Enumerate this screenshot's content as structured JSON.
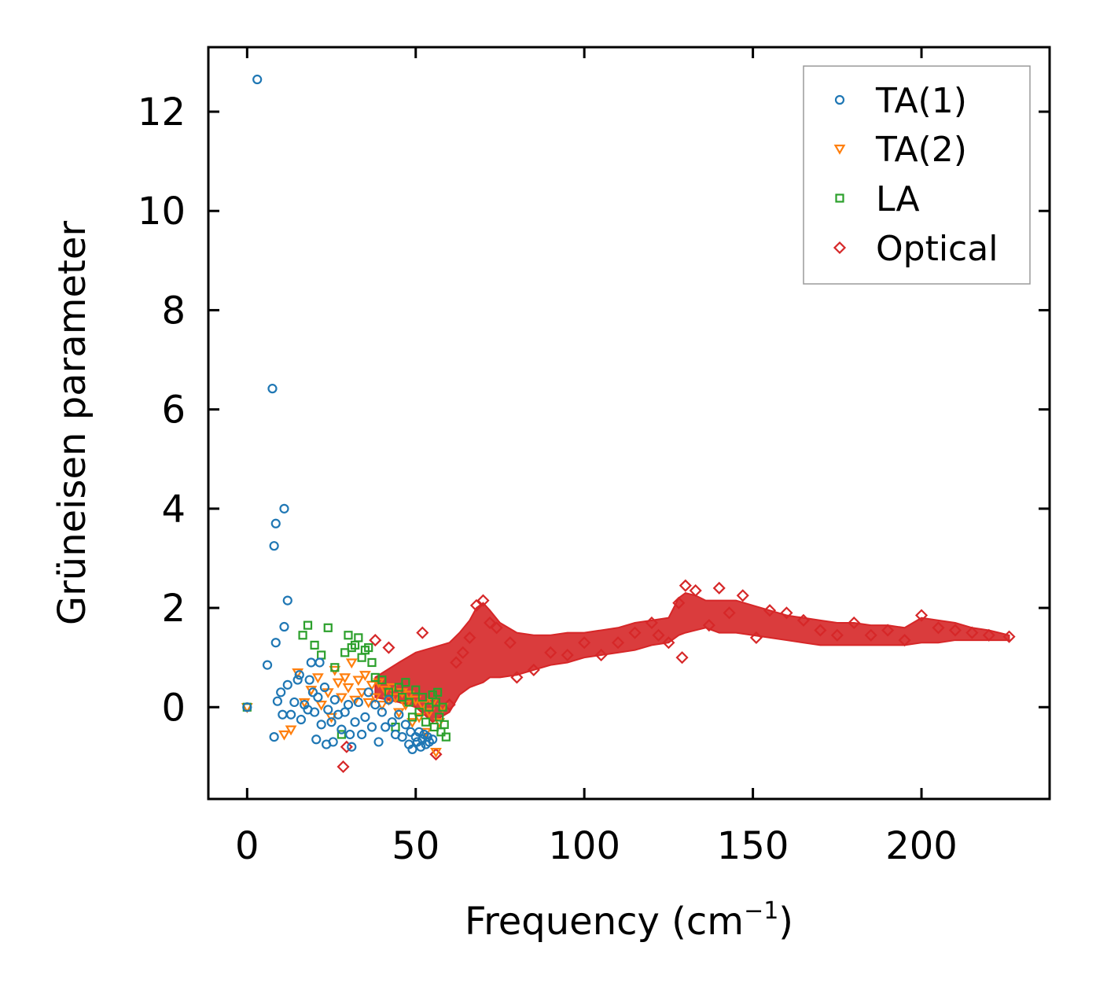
{
  "chart_data": {
    "type": "scatter",
    "title": "",
    "xlabel": "Frequency (cm",
    "xlabel_sup": "−1",
    "xlabel_close": ")",
    "ylabel": "Grüneisen parameter",
    "xlim": [
      -11.5,
      238
    ],
    "ylim": [
      -1.85,
      13.3
    ],
    "xticks": [
      0,
      50,
      100,
      150,
      200
    ],
    "yticks": [
      0,
      2,
      4,
      6,
      8,
      10,
      12
    ],
    "legend_position": "top-right",
    "series": [
      {
        "name": "TA(1)",
        "marker": "circle",
        "color": "#1f77b4",
        "points": [
          [
            0,
            0
          ],
          [
            3,
            12.65
          ],
          [
            7.5,
            6.42
          ],
          [
            8.5,
            3.7
          ],
          [
            8,
            3.25
          ],
          [
            11,
            4.0
          ],
          [
            12,
            2.15
          ],
          [
            11,
            1.62
          ],
          [
            8.5,
            1.3
          ],
          [
            6,
            0.85
          ],
          [
            8,
            -0.6
          ],
          [
            9,
            0.12
          ],
          [
            10,
            0.3
          ],
          [
            10.5,
            -0.15
          ],
          [
            12,
            0.45
          ],
          [
            13,
            -0.15
          ],
          [
            14,
            0.1
          ],
          [
            15,
            0.55
          ],
          [
            15.5,
            0.65
          ],
          [
            16,
            -0.25
          ],
          [
            17,
            0.05
          ],
          [
            18,
            -0.05
          ],
          [
            18.5,
            0.55
          ],
          [
            19,
            0.9
          ],
          [
            19.5,
            0.3
          ],
          [
            20,
            -0.1
          ],
          [
            20.5,
            -0.65
          ],
          [
            21,
            0.2
          ],
          [
            21.5,
            0.9
          ],
          [
            22,
            -0.35
          ],
          [
            23,
            0.4
          ],
          [
            23.5,
            -0.75
          ],
          [
            24,
            -0.05
          ],
          [
            25,
            -0.3
          ],
          [
            25.5,
            -0.7
          ],
          [
            26,
            0.15
          ],
          [
            27,
            -0.15
          ],
          [
            28,
            -0.45
          ],
          [
            29,
            -0.1
          ],
          [
            30,
            0.05
          ],
          [
            30.5,
            -0.55
          ],
          [
            31,
            -0.8
          ],
          [
            32,
            -0.3
          ],
          [
            33,
            0.1
          ],
          [
            34,
            -0.55
          ],
          [
            35,
            -0.2
          ],
          [
            36,
            0.3
          ],
          [
            37,
            -0.4
          ],
          [
            38,
            0.05
          ],
          [
            39,
            -0.7
          ],
          [
            40,
            -0.1
          ],
          [
            41,
            -0.4
          ],
          [
            42,
            0.15
          ],
          [
            43,
            -0.3
          ],
          [
            44,
            -0.55
          ],
          [
            45,
            -0.15
          ],
          [
            46,
            -0.6
          ],
          [
            47,
            -0.35
          ],
          [
            48,
            -0.75
          ],
          [
            48.5,
            -0.5
          ],
          [
            49,
            -0.85
          ],
          [
            50,
            -0.6
          ],
          [
            50.5,
            -0.7
          ],
          [
            51,
            -0.5
          ],
          [
            51.5,
            -0.8
          ],
          [
            52,
            -0.65
          ],
          [
            52.5,
            -0.55
          ],
          [
            53,
            -0.75
          ],
          [
            53.5,
            -0.6
          ],
          [
            54,
            -0.7
          ],
          [
            55,
            -0.65
          ]
        ]
      },
      {
        "name": "TA(2)",
        "marker": "triangle-down",
        "color": "#ff7f0e",
        "points": [
          [
            0,
            0
          ],
          [
            11,
            -0.55
          ],
          [
            13,
            -0.45
          ],
          [
            15,
            0.7
          ],
          [
            17,
            0.1
          ],
          [
            19,
            0.35
          ],
          [
            21,
            0.6
          ],
          [
            22,
            0.05
          ],
          [
            24,
            0.3
          ],
          [
            25,
            -0.2
          ],
          [
            26,
            0.75
          ],
          [
            27,
            0.5
          ],
          [
            28,
            0.2
          ],
          [
            29,
            0.6
          ],
          [
            30,
            0.4
          ],
          [
            31,
            0.9
          ],
          [
            32,
            0.15
          ],
          [
            33,
            0.55
          ],
          [
            34,
            0.3
          ],
          [
            35,
            0.65
          ],
          [
            36,
            0.1
          ],
          [
            37,
            0.45
          ],
          [
            38,
            0.2
          ],
          [
            39,
            0.5
          ],
          [
            40,
            0.05
          ],
          [
            41,
            0.35
          ],
          [
            42,
            0.15
          ],
          [
            43,
            0.4
          ],
          [
            44,
            0.2
          ],
          [
            45,
            -0.1
          ],
          [
            46,
            0.3
          ],
          [
            47,
            0.05
          ],
          [
            48,
            0.25
          ],
          [
            49,
            -0.3
          ],
          [
            50,
            0.15
          ],
          [
            51,
            -0.2
          ],
          [
            52,
            0.05
          ],
          [
            53,
            -0.5
          ],
          [
            54,
            -0.1
          ],
          [
            55,
            0.1
          ],
          [
            56,
            -0.9
          ],
          [
            57,
            -0.3
          ],
          [
            58,
            0.0
          ]
        ]
      },
      {
        "name": "LA",
        "marker": "square",
        "color": "#2ca02c",
        "points": [
          [
            0,
            0
          ],
          [
            16.5,
            1.45
          ],
          [
            18,
            1.65
          ],
          [
            20,
            1.25
          ],
          [
            22,
            1.05
          ],
          [
            24,
            1.6
          ],
          [
            26,
            0.8
          ],
          [
            28,
            -0.55
          ],
          [
            29,
            1.1
          ],
          [
            30,
            1.45
          ],
          [
            31,
            1.2
          ],
          [
            32,
            1.25
          ],
          [
            33,
            1.4
          ],
          [
            34,
            1.0
          ],
          [
            35,
            1.15
          ],
          [
            36,
            1.2
          ],
          [
            37,
            0.9
          ],
          [
            38,
            0.6
          ],
          [
            40,
            0.55
          ],
          [
            42,
            0.3
          ],
          [
            44,
            -0.4
          ],
          [
            45,
            0.4
          ],
          [
            46,
            0.2
          ],
          [
            47,
            0.5
          ],
          [
            48,
            0.1
          ],
          [
            49,
            -0.2
          ],
          [
            50,
            0.35
          ],
          [
            51,
            -0.1
          ],
          [
            52,
            0.2
          ],
          [
            53,
            -0.3
          ],
          [
            54,
            0.0
          ],
          [
            55,
            0.25
          ],
          [
            55.5,
            -0.4
          ],
          [
            56,
            0.1
          ],
          [
            56.5,
            0.3
          ],
          [
            57,
            -0.2
          ],
          [
            57.5,
            -0.5
          ],
          [
            58,
            0.0
          ],
          [
            58.5,
            -0.35
          ],
          [
            59,
            -0.6
          ]
        ]
      },
      {
        "name": "Optical",
        "marker": "diamond",
        "color": "#d62728",
        "points": [
          [
            28.5,
            -1.2
          ],
          [
            29.5,
            -0.8
          ],
          [
            38,
            1.35
          ],
          [
            42,
            1.2
          ],
          [
            52,
            1.5
          ],
          [
            56,
            -0.95
          ],
          [
            60,
            0.05
          ],
          [
            62,
            0.9
          ],
          [
            64,
            1.1
          ],
          [
            66,
            1.4
          ],
          [
            68,
            2.05
          ],
          [
            70,
            2.15
          ],
          [
            72,
            1.7
          ],
          [
            74,
            1.6
          ],
          [
            78,
            1.3
          ],
          [
            80,
            0.6
          ],
          [
            85,
            0.75
          ],
          [
            90,
            1.1
          ],
          [
            95,
            1.05
          ],
          [
            100,
            1.3
          ],
          [
            105,
            1.05
          ],
          [
            110,
            1.3
          ],
          [
            115,
            1.5
          ],
          [
            120,
            1.7
          ],
          [
            122,
            1.45
          ],
          [
            125,
            1.3
          ],
          [
            128,
            2.1
          ],
          [
            129,
            1.0
          ],
          [
            130,
            2.45
          ],
          [
            133,
            2.35
          ],
          [
            137,
            1.65
          ],
          [
            140,
            2.4
          ],
          [
            143,
            1.9
          ],
          [
            147,
            2.25
          ],
          [
            151,
            1.4
          ],
          [
            155,
            1.95
          ],
          [
            160,
            1.9
          ],
          [
            165,
            1.75
          ],
          [
            170,
            1.55
          ],
          [
            175,
            1.45
          ],
          [
            180,
            1.7
          ],
          [
            185,
            1.45
          ],
          [
            190,
            1.55
          ],
          [
            195,
            1.35
          ],
          [
            200,
            1.85
          ],
          [
            205,
            1.6
          ],
          [
            210,
            1.55
          ],
          [
            215,
            1.5
          ],
          [
            220,
            1.45
          ],
          [
            226,
            1.42
          ]
        ]
      }
    ],
    "optical_band": {
      "x": [
        38,
        45,
        50,
        55,
        60,
        63,
        66,
        68,
        70,
        72,
        75,
        80,
        85,
        90,
        95,
        100,
        105,
        110,
        115,
        120,
        125,
        128,
        130,
        133,
        136,
        140,
        145,
        150,
        155,
        160,
        165,
        170,
        175,
        180,
        185,
        190,
        195,
        200,
        205,
        210,
        215,
        220,
        226
      ],
      "low": [
        0.2,
        0.1,
        0.0,
        -0.3,
        -0.1,
        0.25,
        0.4,
        0.45,
        0.5,
        0.6,
        0.6,
        0.65,
        0.75,
        0.85,
        0.9,
        1.0,
        1.05,
        1.1,
        1.15,
        1.25,
        1.3,
        1.45,
        1.5,
        1.55,
        1.6,
        1.5,
        1.5,
        1.45,
        1.4,
        1.35,
        1.3,
        1.25,
        1.25,
        1.25,
        1.25,
        1.25,
        1.25,
        1.3,
        1.3,
        1.35,
        1.35,
        1.35,
        1.35
      ],
      "high": [
        0.6,
        0.9,
        1.1,
        1.2,
        1.3,
        1.5,
        1.75,
        2.0,
        2.1,
        1.95,
        1.7,
        1.5,
        1.45,
        1.45,
        1.5,
        1.5,
        1.55,
        1.6,
        1.7,
        1.75,
        1.8,
        2.2,
        2.3,
        2.25,
        2.15,
        2.15,
        2.15,
        2.05,
        1.95,
        1.85,
        1.8,
        1.75,
        1.7,
        1.7,
        1.65,
        1.65,
        1.6,
        1.8,
        1.75,
        1.7,
        1.6,
        1.55,
        1.45
      ]
    }
  }
}
